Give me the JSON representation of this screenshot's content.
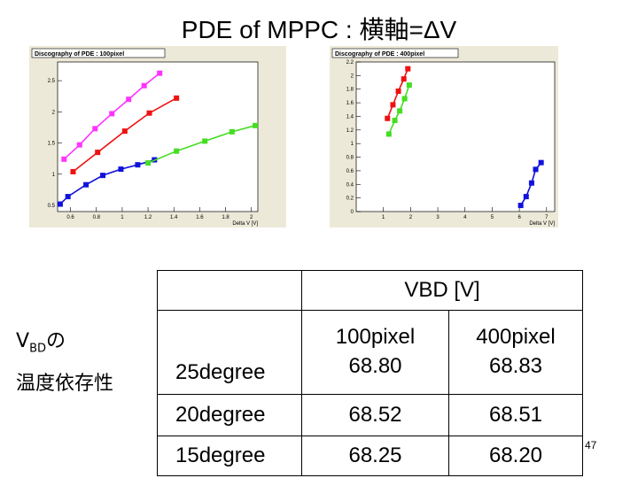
{
  "slide": {
    "title": "PDE of MPPC : 横軸=ΔV",
    "vbd_label_main": "V",
    "vbd_label_sub": "BD",
    "vbd_label_suffix": "の",
    "temperature_dependence": "温度依存性",
    "page_number": "47"
  },
  "table": {
    "header": "VBD  [V]",
    "columns": [
      "100pixel",
      "400pixel"
    ],
    "rows": [
      {
        "label": "25degree",
        "values": [
          "68.80",
          "68.83"
        ]
      },
      {
        "label": "20degree",
        "values": [
          "68.52",
          "68.51"
        ]
      },
      {
        "label": "15degree",
        "values": [
          "68.25",
          "68.20"
        ]
      }
    ]
  },
  "chart_data": [
    {
      "type": "line",
      "title": "Discography of PDE : 100pixel",
      "xlabel": "Delta V [V]",
      "ylabel": "",
      "xlim": [
        0.5,
        2.05
      ],
      "ylim": [
        0.4,
        2.8
      ],
      "xticks": [
        0.6,
        0.8,
        1,
        1.2,
        1.4,
        1.6,
        1.8,
        2
      ],
      "xtick_labels": [
        "0.6",
        "0.8",
        "1",
        "1.2",
        "1.4",
        "1.6",
        "1.8",
        "2"
      ],
      "yticks": [
        0.5,
        1,
        1.5,
        2,
        2.5
      ],
      "ytick_labels": [
        "0.5",
        "1",
        "1.5",
        "2",
        "2.5"
      ],
      "grid": false,
      "series": [
        {
          "color": "#ff33ff",
          "x": [
            0.55,
            0.67,
            0.79,
            0.92,
            1.05,
            1.17,
            1.29
          ],
          "y": [
            1.24,
            1.47,
            1.73,
            1.97,
            2.2,
            2.42,
            2.62
          ]
        },
        {
          "color": "#ee1111",
          "x": [
            0.62,
            0.81,
            1.02,
            1.21,
            1.42
          ],
          "y": [
            1.04,
            1.35,
            1.69,
            1.98,
            2.22
          ]
        },
        {
          "color": "#1111dd",
          "x": [
            0.52,
            0.58,
            0.72,
            0.85,
            0.99,
            1.12,
            1.25
          ],
          "y": [
            0.52,
            0.64,
            0.83,
            0.98,
            1.08,
            1.15,
            1.23
          ]
        },
        {
          "color": "#44dd22",
          "x": [
            1.2,
            1.42,
            1.64,
            1.85,
            2.03
          ],
          "y": [
            1.18,
            1.37,
            1.53,
            1.68,
            1.78
          ]
        }
      ]
    },
    {
      "type": "line",
      "title": "Discography of PDE : 400pixel",
      "xlabel": "Delta V [V]",
      "ylabel": "",
      "xlim": [
        0,
        7.3
      ],
      "ylim": [
        0,
        2.2
      ],
      "xticks": [
        1,
        2,
        3,
        4,
        5,
        6,
        7
      ],
      "xtick_labels": [
        "1",
        "2",
        "3",
        "4",
        "5",
        "6",
        "7"
      ],
      "yticks": [
        0,
        0.2,
        0.4,
        0.6,
        0.8,
        1,
        1.2,
        1.4,
        1.6,
        1.8,
        2,
        2.2
      ],
      "ytick_labels": [
        "0",
        "0.2",
        "0.4",
        "0.6",
        "0.8",
        "1",
        "1.2",
        "1.4",
        "1.6",
        "1.8",
        "2",
        "2.2"
      ],
      "grid": false,
      "series": [
        {
          "color": "#ee1111",
          "x": [
            1.15,
            1.35,
            1.55,
            1.75,
            1.9
          ],
          "y": [
            1.37,
            1.57,
            1.77,
            1.95,
            2.1
          ]
        },
        {
          "color": "#44dd22",
          "x": [
            1.2,
            1.42,
            1.6,
            1.78,
            1.95
          ],
          "y": [
            1.14,
            1.34,
            1.48,
            1.66,
            1.86
          ]
        },
        {
          "color": "#1111dd",
          "x": [
            6.05,
            6.25,
            6.45,
            6.6,
            6.8
          ],
          "y": [
            0.09,
            0.22,
            0.42,
            0.62,
            0.72
          ]
        }
      ]
    }
  ]
}
